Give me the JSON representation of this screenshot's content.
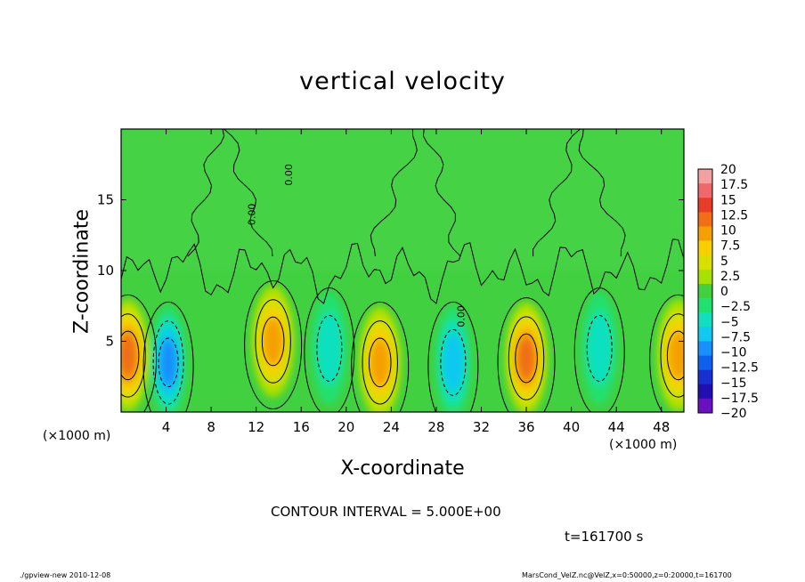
{
  "chart_data": {
    "type": "heatmap",
    "title": "vertical velocity",
    "xlabel": "X-coordinate",
    "ylabel": "Z-coordinate",
    "x_unit_left": "(×1000 m)",
    "x_unit_right": "(×1000 m)",
    "xlim": [
      0,
      50
    ],
    "ylim": [
      0,
      20
    ],
    "x_ticks": [
      "4",
      "8",
      "12",
      "16",
      "20",
      "24",
      "28",
      "32",
      "36",
      "40",
      "44",
      "48"
    ],
    "y_ticks": [
      "5",
      "10",
      "15"
    ],
    "colorbar": {
      "labels": [
        "20",
        "17.5",
        "15",
        "12.5",
        "10",
        "7.5",
        "5",
        "2.5",
        "0",
        "−2.5",
        "−5",
        "−7.5",
        "−10",
        "−12.5",
        "−15",
        "−17.5",
        "−20"
      ],
      "colors": [
        "#f2a0a0",
        "#ee6a6a",
        "#e83c28",
        "#f06e14",
        "#f4a000",
        "#f8d000",
        "#d8e000",
        "#a8e000",
        "#40d040",
        "#20e070",
        "#10e0c0",
        "#10c8f0",
        "#1890ff",
        "#1060f0",
        "#1830d0",
        "#2010b0",
        "#6a10c0"
      ]
    },
    "contour_labels": [
      "0.00",
      "0.00",
      "0.00"
    ],
    "contour_interval": "CONTOUR INTERVAL = 5.000E+00",
    "time": "t=161700 s",
    "features": [
      {
        "x": 0.6,
        "z": 4.0,
        "w": 14
      },
      {
        "x": 4.2,
        "z": 3.5,
        "w": -11
      },
      {
        "x": 13.5,
        "z": 5.0,
        "w": 11
      },
      {
        "x": 18.5,
        "z": 4.5,
        "w": -7
      },
      {
        "x": 23.0,
        "z": 3.5,
        "w": 10
      },
      {
        "x": 29.5,
        "z": 3.5,
        "w": -9
      },
      {
        "x": 36.0,
        "z": 3.8,
        "w": 14
      },
      {
        "x": 42.5,
        "z": 4.5,
        "w": -6
      },
      {
        "x": 49.5,
        "z": 4.0,
        "w": 12
      }
    ]
  },
  "footer": {
    "left": "./gpview-new 2010-12-08",
    "right": "MarsCond_VelZ.nc@VelZ,x=0:50000,z=0:20000,t=161700"
  }
}
